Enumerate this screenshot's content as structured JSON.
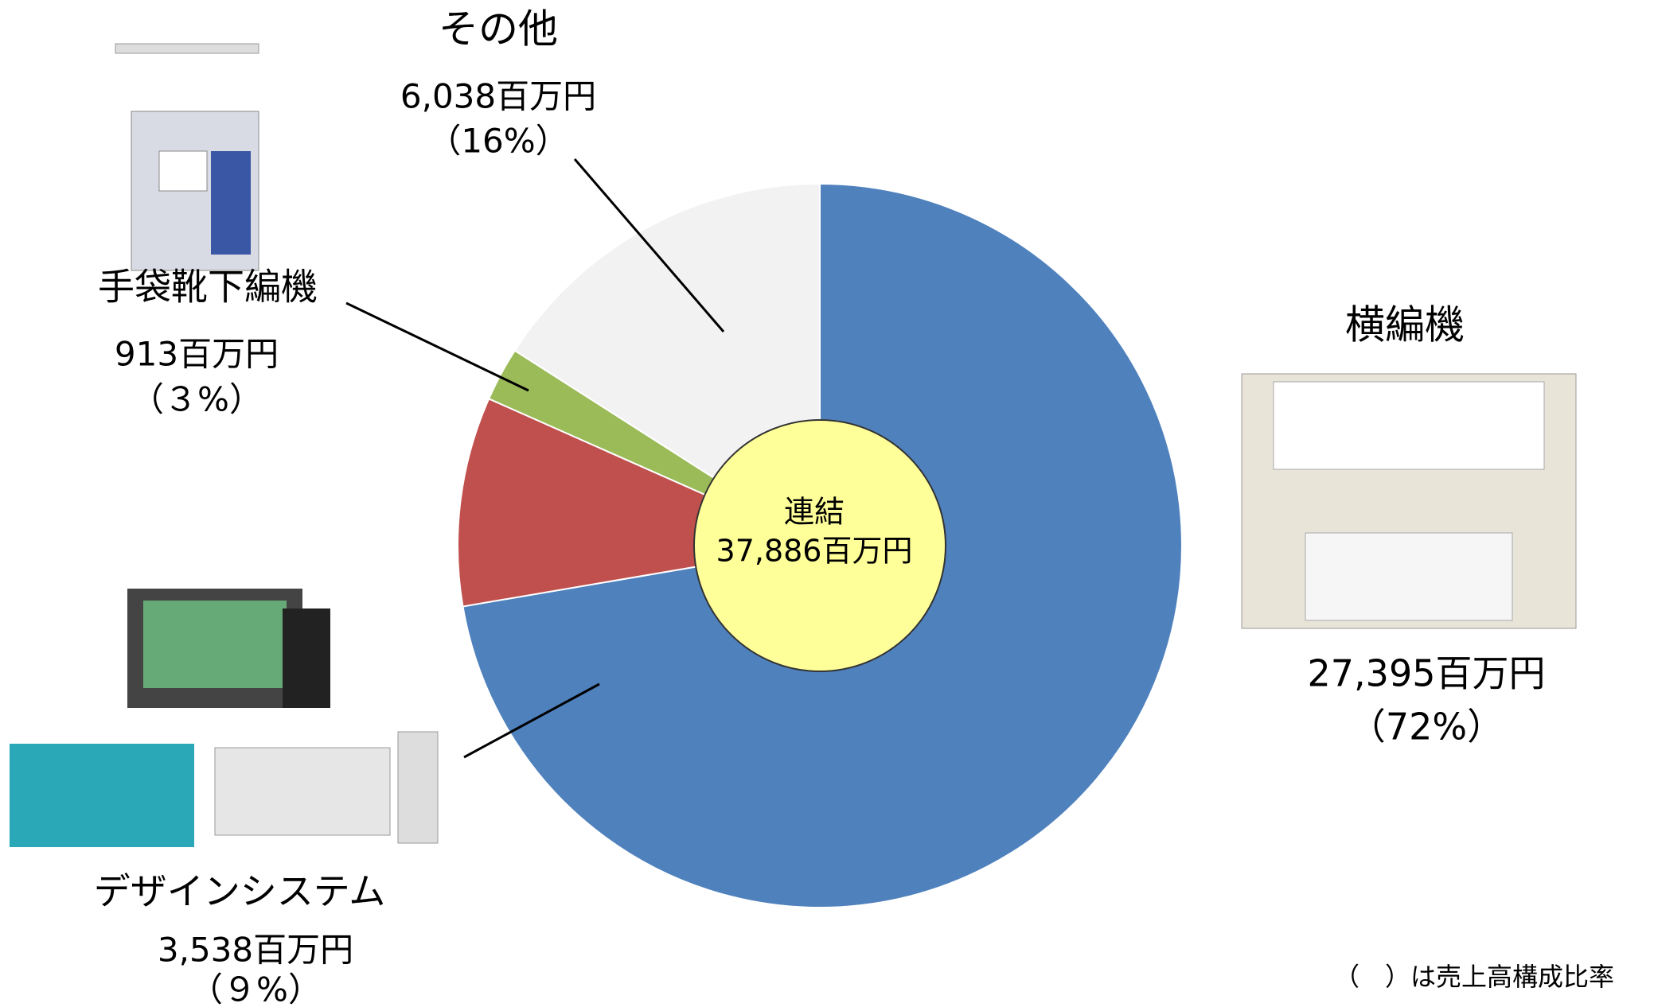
{
  "chart_data": {
    "type": "pie",
    "categories": [
      "横編機",
      "デザインシステム",
      "手袋靴下編機",
      "その他"
    ],
    "values": [
      27395,
      3538,
      913,
      6038
    ],
    "value_labels": [
      "27,395百万円",
      "3,538百万円",
      "913百万円",
      "6,038百万円"
    ],
    "percents": [
      72,
      9,
      3,
      16
    ],
    "percent_labels": [
      "（72%）",
      "（９%）",
      "（３%）",
      "（16%）"
    ],
    "colors": [
      "#4f81bd",
      "#c0504d",
      "#9bbb59",
      "#f2f2f2"
    ],
    "center_label": "連結",
    "total": 37886,
    "total_label": "37,886百万円",
    "note": "（　）は売上高構成比率"
  }
}
